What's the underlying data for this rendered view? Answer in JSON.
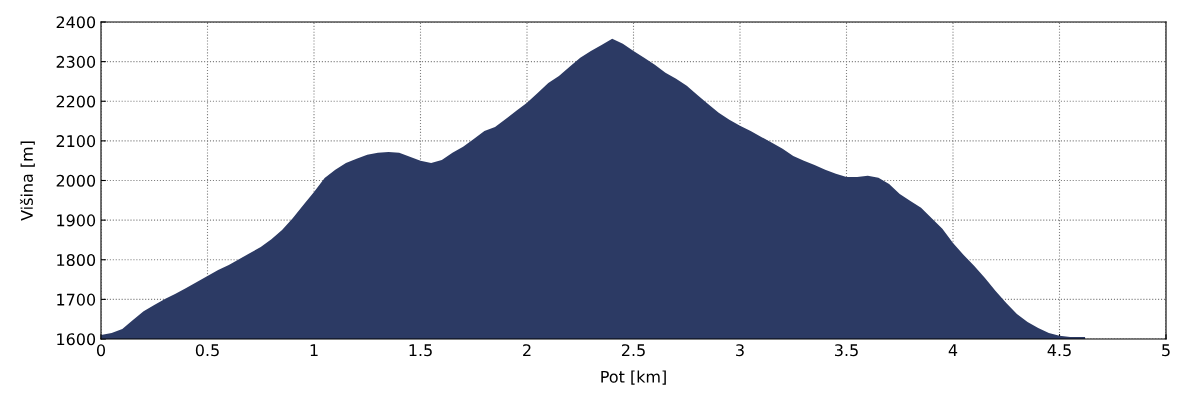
{
  "chart_data": {
    "type": "area",
    "xlabel": "Pot [km]",
    "ylabel": "Višina [m]",
    "xlim": [
      0,
      5
    ],
    "ylim": [
      1600,
      2400
    ],
    "xticks": [
      0,
      0.5,
      1,
      1.5,
      2,
      2.5,
      3,
      3.5,
      4,
      4.5,
      5
    ],
    "yticks": [
      1600,
      1700,
      1800,
      1900,
      2000,
      2100,
      2200,
      2300,
      2400
    ],
    "grid": true,
    "line_style": "dotted",
    "series": [
      {
        "color": "#2c3a64",
        "x": [
          0,
          0.05,
          0.1,
          0.15,
          0.2,
          0.25,
          0.3,
          0.35,
          0.4,
          0.45,
          0.5,
          0.55,
          0.6,
          0.65,
          0.7,
          0.75,
          0.8,
          0.85,
          0.9,
          0.95,
          1.0,
          1.05,
          1.1,
          1.15,
          1.2,
          1.25,
          1.3,
          1.35,
          1.4,
          1.45,
          1.5,
          1.55,
          1.6,
          1.65,
          1.7,
          1.75,
          1.8,
          1.85,
          1.9,
          1.95,
          2.0,
          2.05,
          2.1,
          2.15,
          2.2,
          2.25,
          2.3,
          2.35,
          2.4,
          2.45,
          2.5,
          2.55,
          2.6,
          2.65,
          2.7,
          2.75,
          2.8,
          2.85,
          2.9,
          2.95,
          3.0,
          3.05,
          3.1,
          3.15,
          3.2,
          3.25,
          3.3,
          3.35,
          3.4,
          3.45,
          3.5,
          3.55,
          3.6,
          3.65,
          3.7,
          3.75,
          3.8,
          3.85,
          3.9,
          3.95,
          4.0,
          4.05,
          4.1,
          4.15,
          4.2,
          4.25,
          4.3,
          4.35,
          4.4,
          4.45,
          4.5,
          4.55,
          4.62
        ],
        "values": [
          1610,
          1615,
          1625,
          1648,
          1670,
          1686,
          1701,
          1714,
          1729,
          1744,
          1759,
          1774,
          1787,
          1802,
          1817,
          1832,
          1852,
          1875,
          1905,
          1938,
          1971,
          2006,
          2027,
          2044,
          2055,
          2065,
          2070,
          2072,
          2070,
          2060,
          2050,
          2044,
          2052,
          2070,
          2085,
          2105,
          2125,
          2135,
          2155,
          2176,
          2196,
          2221,
          2246,
          2264,
          2287,
          2310,
          2327,
          2342,
          2358,
          2345,
          2327,
          2310,
          2292,
          2272,
          2257,
          2239,
          2216,
          2193,
          2171,
          2153,
          2138,
          2125,
          2110,
          2095,
          2080,
          2062,
          2050,
          2039,
          2027,
          2017,
          2009,
          2009,
          2012,
          2007,
          1991,
          1966,
          1948,
          1931,
          1905,
          1878,
          1842,
          1812,
          1784,
          1754,
          1721,
          1691,
          1663,
          1643,
          1628,
          1615,
          1608,
          1605,
          1605
        ]
      }
    ]
  }
}
